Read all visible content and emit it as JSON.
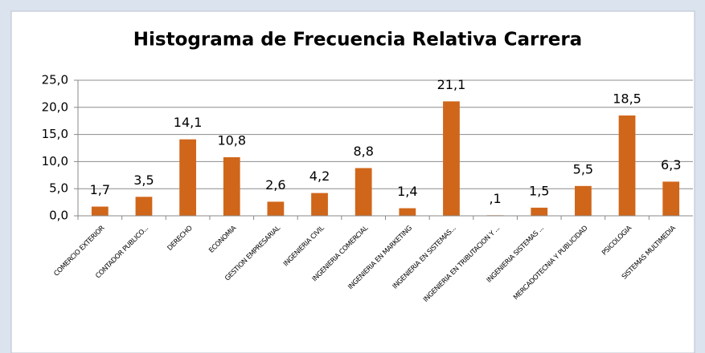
{
  "chart_data": {
    "type": "bar",
    "title": "Histograma  de Frecuencia Relativa Carrera",
    "categories": [
      "COMERCIO EXTERIOR",
      "CONTADOR PUBLICO...",
      "DERECHO",
      "ECONOMIA",
      "GESTION EMPRESARIAL",
      "INGENIERIA CIVIL",
      "INGENIERIA COMERCIAL",
      "INGENIERIA EN MARKETING",
      "INGENIERIA EN SISTEMAS...",
      "INGENIERIA EN TRIBUTACION Y ...",
      "INGENIERIA SISTEMAS ...",
      "MERCADOTECNIA Y PUBLICIDAD",
      "PSICOLOGIA",
      "SISTEMAS MULTIMEDIA"
    ],
    "values": [
      1.7,
      3.5,
      14.1,
      10.8,
      2.6,
      4.2,
      8.8,
      1.4,
      21.1,
      0.1,
      1.5,
      5.5,
      18.5,
      6.3
    ],
    "value_labels": [
      "1,7",
      "3,5",
      "14,1",
      "10,8",
      "2,6",
      "4,2",
      "8,8",
      "1,4",
      "21,1",
      ",1",
      "1,5",
      "5,5",
      "18,5",
      "6,3"
    ],
    "color": "#d0661a",
    "ylim": [
      0,
      25
    ],
    "yticks": [
      {
        "value": 0,
        "label": "0,0"
      },
      {
        "value": 5,
        "label": "5,0"
      },
      {
        "value": 10,
        "label": "10,0"
      },
      {
        "value": 15,
        "label": "15,0"
      },
      {
        "value": 20,
        "label": "20,0"
      },
      {
        "value": 25,
        "label": "25,0"
      }
    ],
    "grid": true
  }
}
